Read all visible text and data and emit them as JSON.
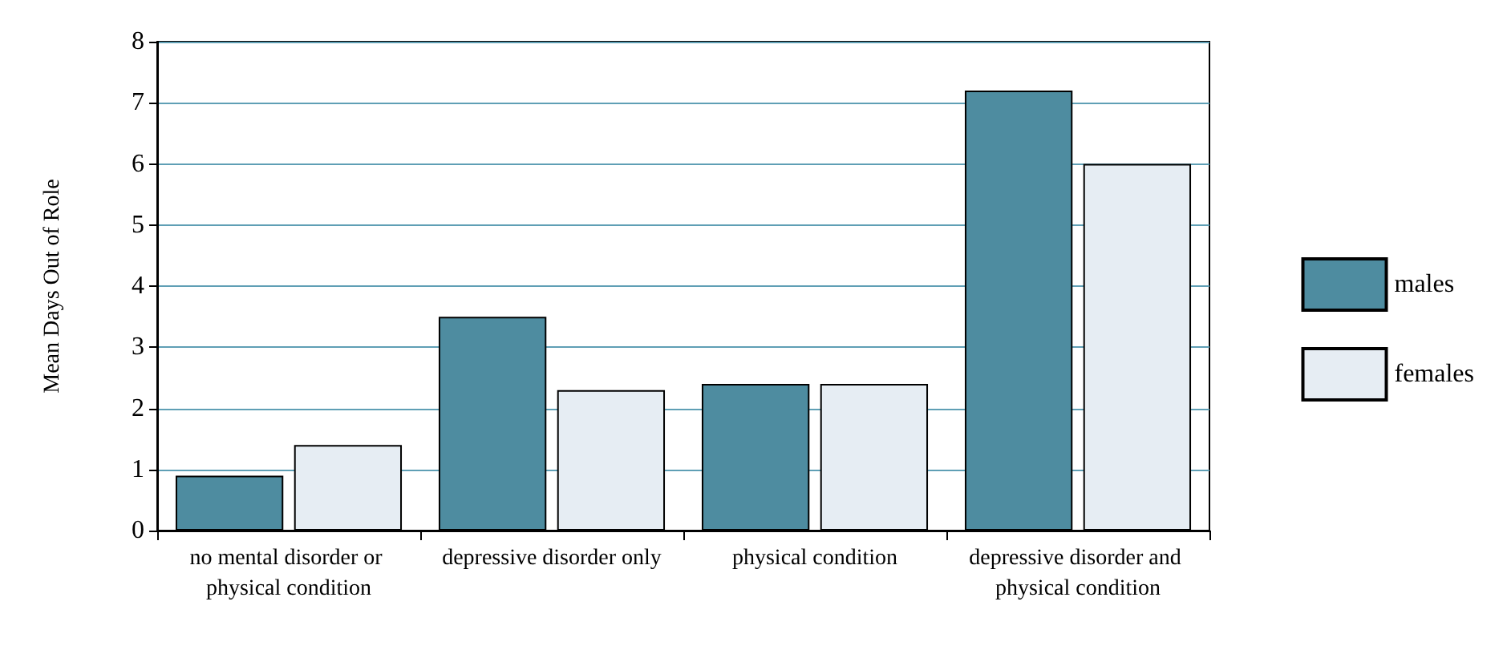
{
  "chart_data": {
    "type": "bar",
    "ylabel": "Mean Days Out of Role",
    "categories": [
      "no mental disorder or physical condition",
      "depressive disorder only",
      "physical condition",
      "depressive disorder and physical condition"
    ],
    "series": [
      {
        "name": "males",
        "color": "#4e8ca0",
        "values": [
          0.9,
          3.5,
          2.4,
          7.2
        ]
      },
      {
        "name": "females",
        "color": "#e6edf3",
        "values": [
          1.4,
          2.3,
          2.4,
          6.0
        ]
      }
    ],
    "ylim": [
      0,
      8
    ],
    "yticks": [
      0,
      1,
      2,
      3,
      4,
      5,
      6,
      7,
      8
    ],
    "grid": "y",
    "legend": "right"
  }
}
